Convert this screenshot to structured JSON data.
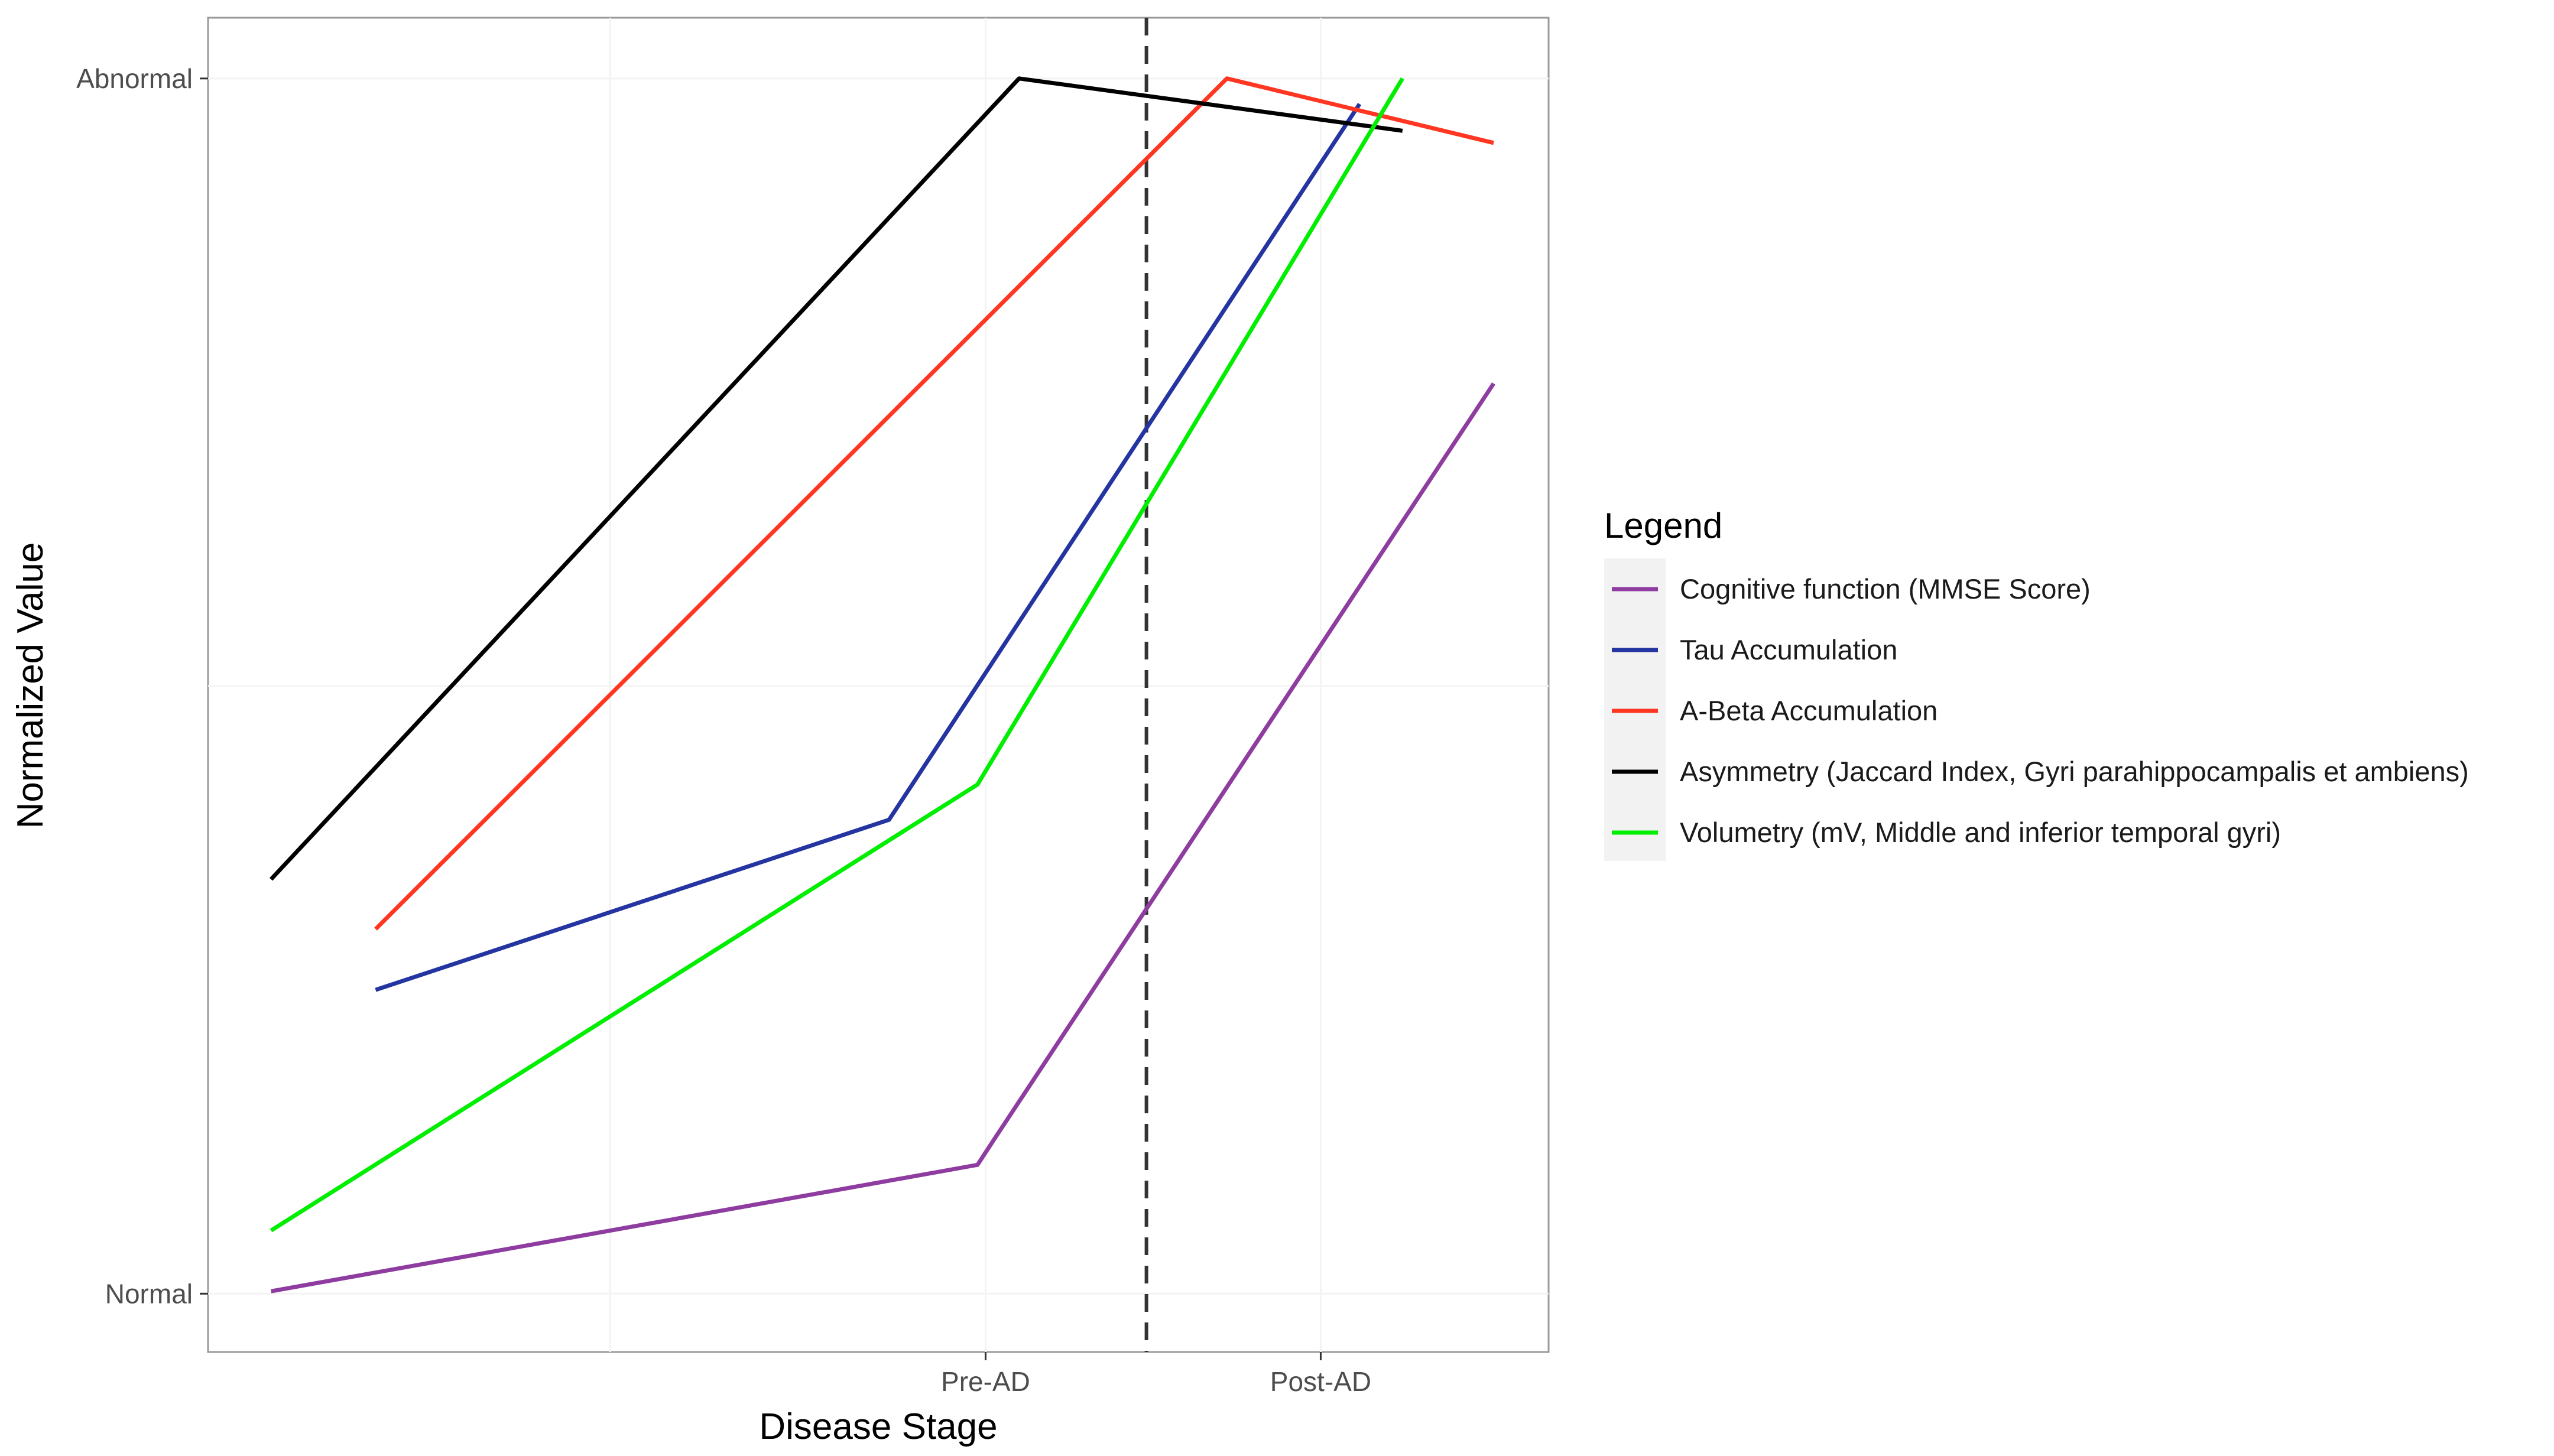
{
  "chart_data": {
    "type": "line",
    "xlabel": "Disease Stage",
    "ylabel": "Normalized Value",
    "x_ticks": [
      {
        "label": "Pre-AD",
        "x": 0.58
      },
      {
        "label": "Post-AD",
        "x": 0.83
      }
    ],
    "y_ticks": [
      {
        "label": "Normal",
        "y": 0.0
      },
      {
        "label": "Abnormal",
        "y": 1.0
      }
    ],
    "xlim": [
      0.0,
      1.0
    ],
    "ylim": [
      -0.048,
      1.05
    ],
    "stage_divider": {
      "x": 0.7,
      "style": "dashed"
    },
    "legend": {
      "title": "Legend",
      "position": "right"
    },
    "series": [
      {
        "name": "Cognitive function (MMSE Score)",
        "color": "#8e3ca0",
        "points": [
          [
            0.047,
            0.002
          ],
          [
            0.574,
            0.106
          ],
          [
            0.587,
            0.128
          ],
          [
            0.959,
            0.749
          ]
        ]
      },
      {
        "name": "Tau Accumulation",
        "color": "#2434a0",
        "points": [
          [
            0.125,
            0.25
          ],
          [
            0.508,
            0.39
          ],
          [
            0.859,
            0.979
          ]
        ]
      },
      {
        "name": "A-Beta Accumulation",
        "color": "#ff3622",
        "points": [
          [
            0.125,
            0.3
          ],
          [
            0.76,
            1.0
          ],
          [
            0.959,
            0.947
          ]
        ]
      },
      {
        "name": "Asymmetry (Jaccard Index, Gyri parahippocampalis et ambiens)",
        "color": "#000000",
        "points": [
          [
            0.047,
            0.341
          ],
          [
            0.605,
            1.0
          ],
          [
            0.891,
            0.957
          ]
        ]
      },
      {
        "name": "Volumetry (mV, Middle and inferior temporal gyri)",
        "color": "#00ee00",
        "points": [
          [
            0.047,
            0.052
          ],
          [
            0.574,
            0.419
          ],
          [
            0.891,
            1.0
          ]
        ]
      }
    ]
  }
}
